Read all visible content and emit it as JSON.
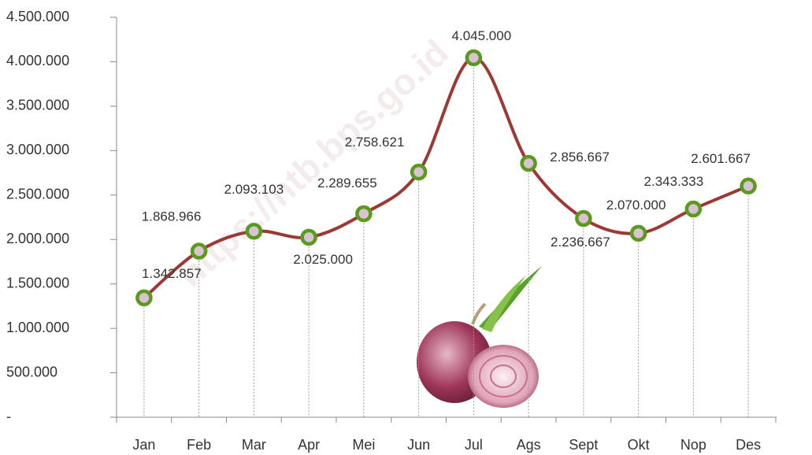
{
  "chart_data": {
    "type": "line",
    "watermark": "https://ntb.bps.go.id",
    "categories": [
      "Jan",
      "Feb",
      "Mar",
      "Apr",
      "Mei",
      "Jun",
      "Jul",
      "Ags",
      "Sept",
      "Okt",
      "Nop",
      "Des"
    ],
    "values": [
      1342857,
      1868966,
      2093103,
      2025000,
      2289655,
      2758621,
      4045000,
      2856667,
      2236667,
      2070000,
      2343333,
      2601667
    ],
    "value_labels": [
      "1.342.857",
      "1.868.966",
      "2.093.103",
      "2.025.000",
      "2.289.655",
      "2.758.621",
      "4.045.000",
      "2.856.667",
      "2.236.667",
      "2.070.000",
      "2.343.333",
      "2.601.667"
    ],
    "color": "#9b3a35",
    "marker_color": "#5a9a1e",
    "ylim": [
      0,
      4500000
    ],
    "yticks": [
      {
        "value": 0,
        "label": "-"
      },
      {
        "value": 500000,
        "label": "500.000"
      },
      {
        "value": 1000000,
        "label": "1.000.000"
      },
      {
        "value": 1500000,
        "label": "1.500.000"
      },
      {
        "value": 2000000,
        "label": "2.000.000"
      },
      {
        "value": 2500000,
        "label": "2.500.000"
      },
      {
        "value": 3000000,
        "label": "3.000.000"
      },
      {
        "value": 3500000,
        "label": "3.500.000"
      },
      {
        "value": 4000000,
        "label": "4.000.000"
      },
      {
        "value": 4500000,
        "label": "4.500.000"
      }
    ]
  }
}
